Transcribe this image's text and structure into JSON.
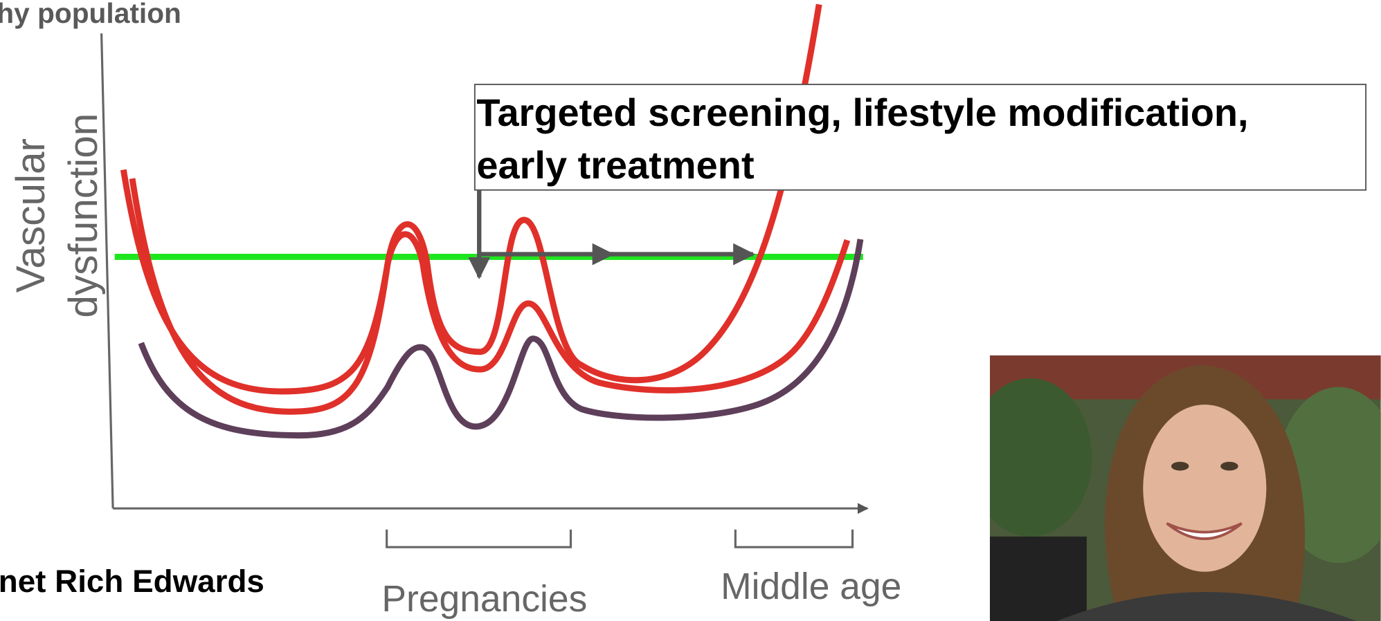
{
  "header": {
    "title": "hy population"
  },
  "diagram": {
    "y_axis_label": [
      "Vascular",
      "dysfunction"
    ],
    "callout": [
      "Targeted screening, lifestyle modification,",
      "early treatment"
    ],
    "brackets": [
      "Pregnancies",
      "Middle age"
    ]
  },
  "credit": "net Rich Edwards"
}
